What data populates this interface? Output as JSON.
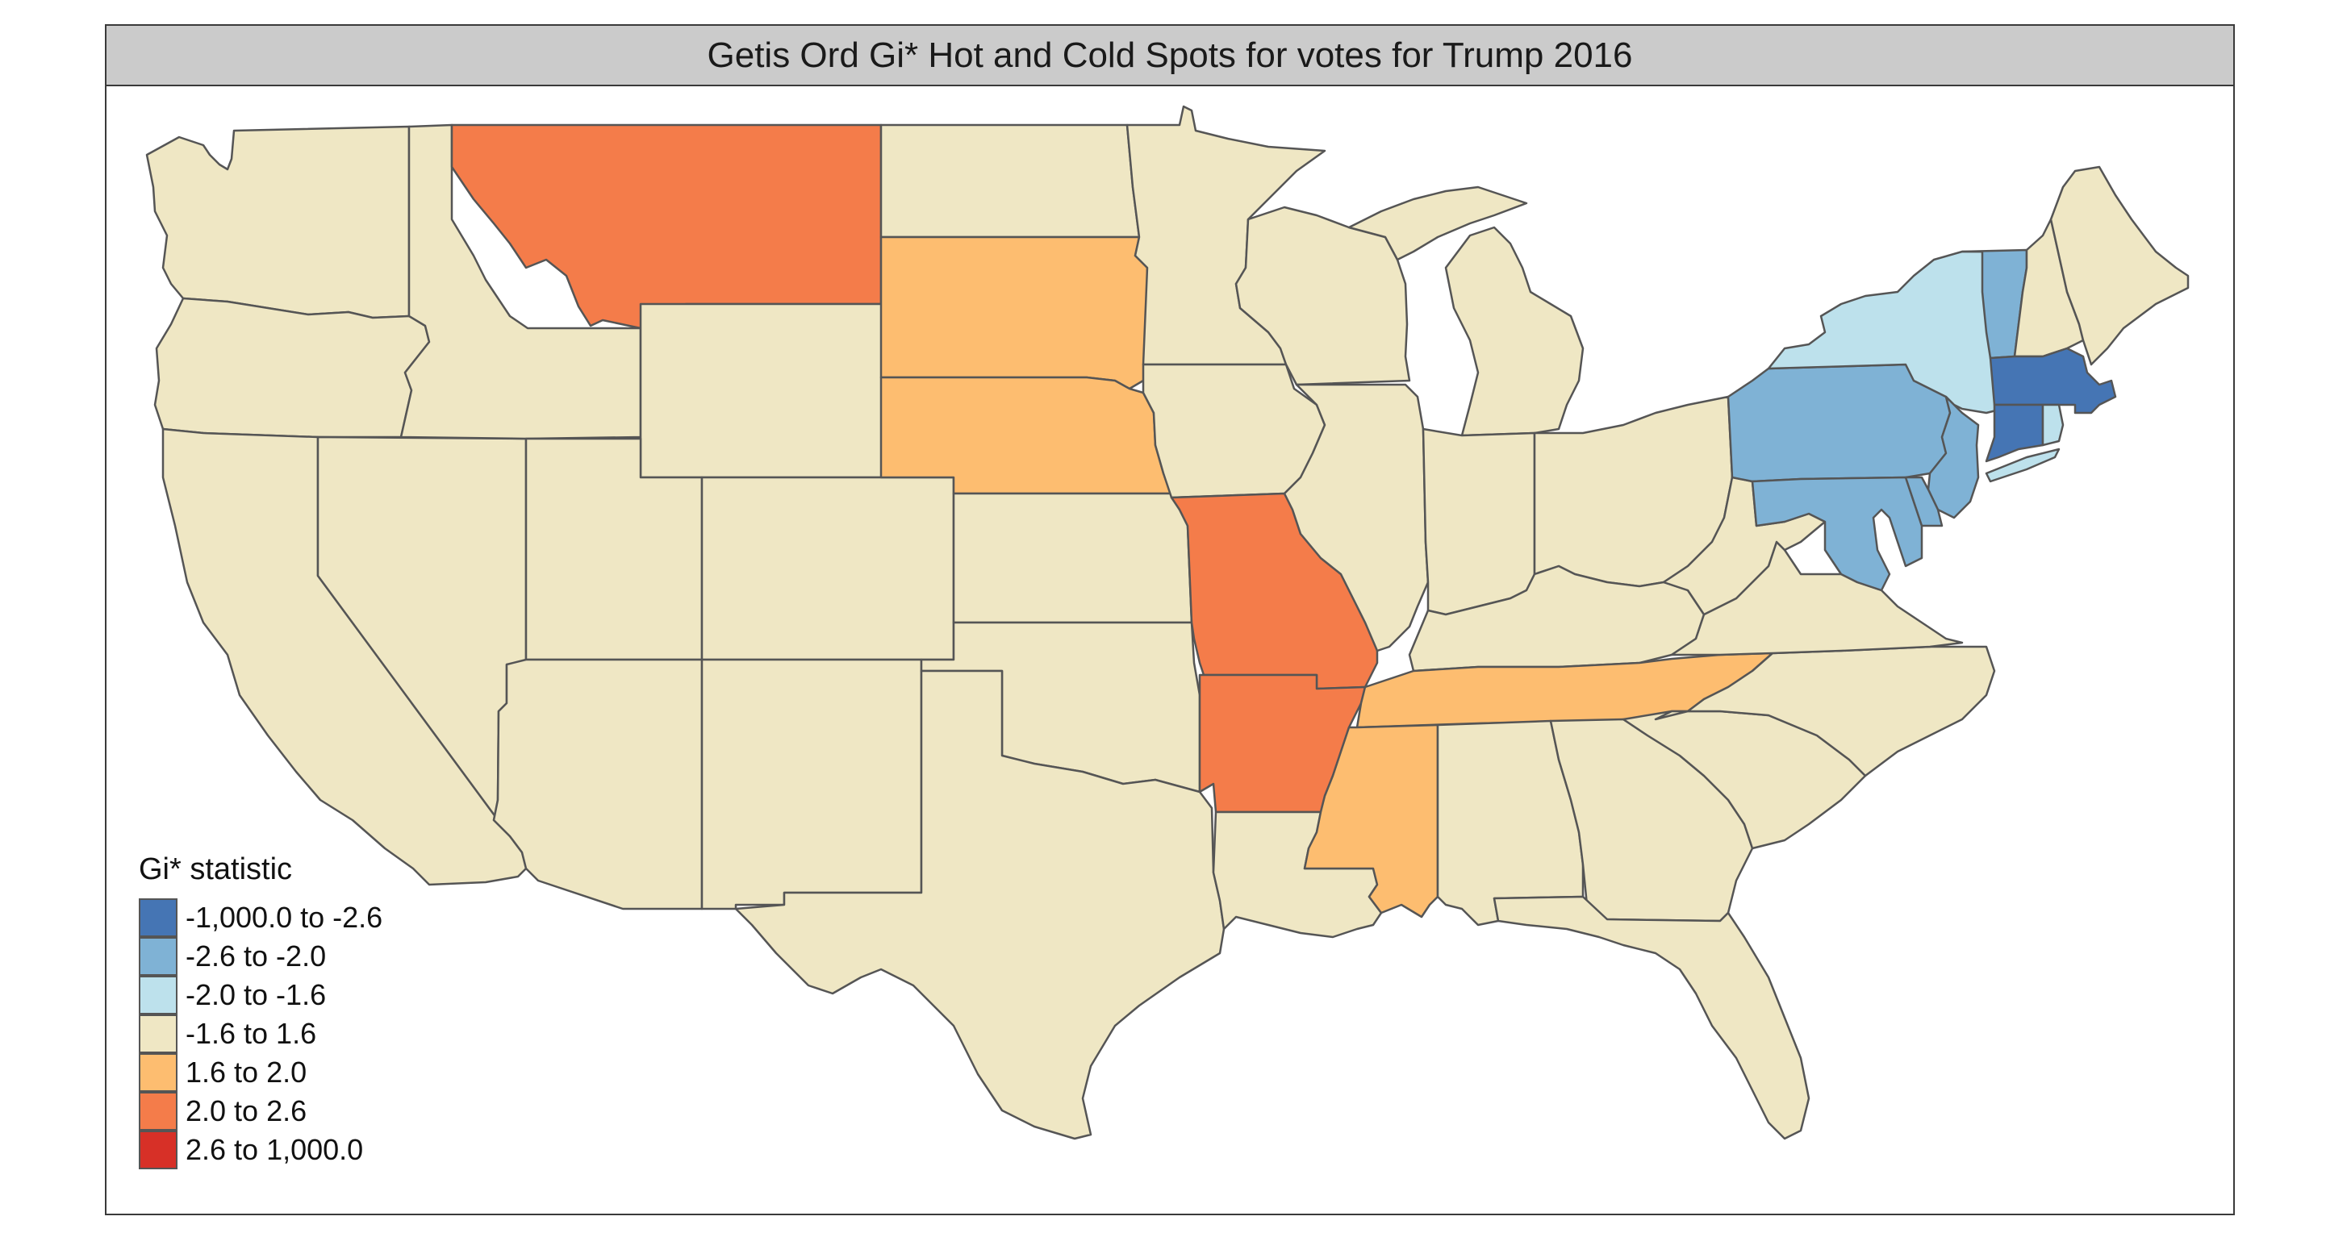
{
  "title": "Getis Ord Gi* Hot and Cold Spots for votes for Trump 2016",
  "legend": {
    "title": "Gi* statistic",
    "items": [
      {
        "label": "-1,000.0 to -2.6",
        "color": "#4575b4"
      },
      {
        "label": "-2.6 to -2.0",
        "color": "#7fb2d5"
      },
      {
        "label": "-2.0 to -1.6",
        "color": "#bde1ec"
      },
      {
        "label": "-1.6 to 1.6",
        "color": "#efe7c4"
      },
      {
        "label": "1.6 to 2.0",
        "color": "#fdbd70"
      },
      {
        "label": "2.0 to 2.6",
        "color": "#f47c4a"
      },
      {
        "label": "2.6 to 1,000.0",
        "color": "#d73027"
      }
    ]
  },
  "states_by_class": {
    "-1,000.0 to -2.6": [
      "Massachusetts",
      "Connecticut"
    ],
    "-2.6 to -2.0": [
      "Vermont",
      "Pennsylvania",
      "New Jersey",
      "Maryland",
      "Delaware"
    ],
    "-2.0 to -1.6": [
      "New York",
      "Rhode Island"
    ],
    "1.6 to 2.0": [
      "South Dakota",
      "Nebraska",
      "Tennessee",
      "Mississippi"
    ],
    "2.0 to 2.6": [
      "Montana",
      "Missouri",
      "Arkansas"
    ],
    "2.6 to 1,000.0": []
  }
}
